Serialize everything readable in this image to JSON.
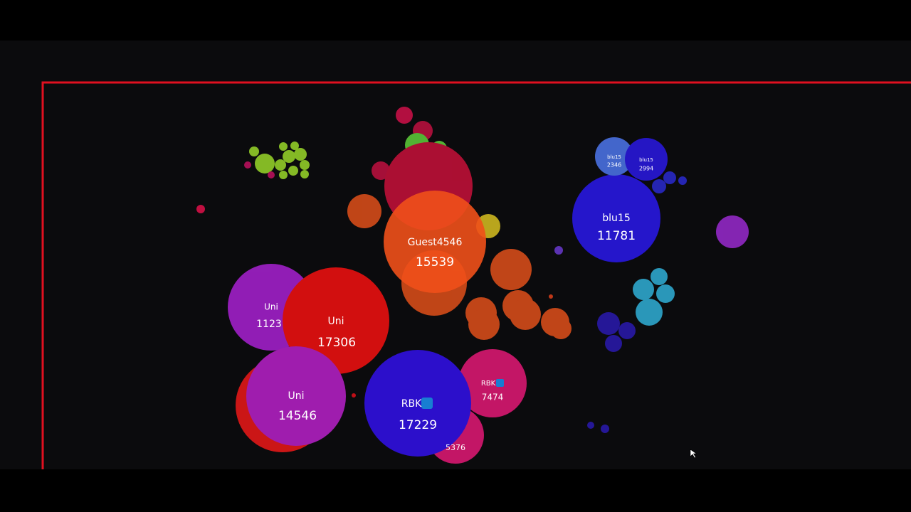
{
  "cells": [
    {
      "name": "Guest4546",
      "mass": 15539
    },
    {
      "name": "blu15",
      "mass": 11781
    },
    {
      "name": "blu15",
      "mass": 2346
    },
    {
      "name": "blu15",
      "mass": 2994
    },
    {
      "name": "Uni",
      "mass": 17306
    },
    {
      "name": "Uni",
      "mass": 1123
    },
    {
      "name": "Uni",
      "mass": 14546
    },
    {
      "name": "RBK",
      "mass": 17229
    },
    {
      "name": "RBK",
      "mass": 7474
    },
    {
      "mass": 5376
    }
  ]
}
